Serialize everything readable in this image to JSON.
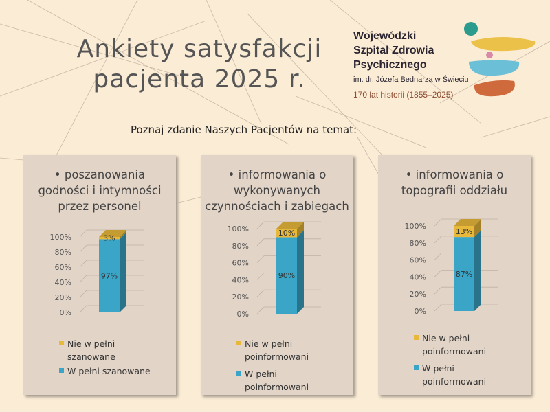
{
  "header": {
    "title_line1": "Ankiety satysfakcji",
    "title_line2": "pacjenta 2025 r.",
    "subtitle": "Poznaj zdanie Naszych Pacjentów na temat:"
  },
  "logo": {
    "org_line1": "Wojewódzki",
    "org_line2": "Szpital Zdrowia",
    "org_line3": "Psychicznego",
    "patron": "im. dr. Józefa Bednarza w Świeciu",
    "history": "170 lat historii (1855–2025)"
  },
  "colors": {
    "background": "#fbecd6",
    "panel": "#e2d4c7",
    "blue": "#3aa5c6",
    "gold": "#e8b83a"
  },
  "panels": [
    {
      "title_lines": [
        "• poszanowania",
        "godności i intymności",
        "przez personel"
      ],
      "legend": [
        {
          "lines": [
            "Nie w pełni",
            "szanowane"
          ]
        },
        {
          "lines": [
            "W pełni szanowane"
          ]
        }
      ]
    },
    {
      "title_lines": [
        "• informowania o",
        "wykonywanych",
        "czynnościach i zabiegach"
      ],
      "legend": [
        {
          "lines": [
            "Nie w pełni",
            "poinformowani"
          ]
        },
        {
          "lines": [
            "W pełni",
            "poinformowani"
          ]
        }
      ]
    },
    {
      "title_lines": [
        "• informowania o",
        "topografii oddziału"
      ],
      "legend": [
        {
          "lines": [
            "Nie w pełni",
            "poinformowani"
          ]
        },
        {
          "lines": [
            "W pełni",
            "poinformowani"
          ]
        }
      ]
    }
  ],
  "chart_data": [
    {
      "type": "bar",
      "stacked": true,
      "ylim": [
        0,
        100
      ],
      "yticks": [
        "0%",
        "20%",
        "40%",
        "60%",
        "80%",
        "100%"
      ],
      "series": [
        {
          "name": "W pełni szanowane",
          "values": [
            97
          ],
          "label": "97%"
        },
        {
          "name": "Nie w pełni szanowane",
          "values": [
            3
          ],
          "label": "3%"
        }
      ]
    },
    {
      "type": "bar",
      "stacked": true,
      "ylim": [
        0,
        100
      ],
      "yticks": [
        "0%",
        "20%",
        "40%",
        "60%",
        "80%",
        "100%"
      ],
      "series": [
        {
          "name": "W pełni poinformowani",
          "values": [
            90
          ],
          "label": "90%"
        },
        {
          "name": "Nie w pełni poinformowani",
          "values": [
            10
          ],
          "label": "10%"
        }
      ]
    },
    {
      "type": "bar",
      "stacked": true,
      "ylim": [
        0,
        100
      ],
      "yticks": [
        "0%",
        "20%",
        "40%",
        "60%",
        "80%",
        "100%"
      ],
      "series": [
        {
          "name": "W pełni poinformowani",
          "values": [
            87
          ],
          "label": "87%"
        },
        {
          "name": "Nie w pełni poinformowani",
          "values": [
            13
          ],
          "label": "13%"
        }
      ]
    }
  ]
}
